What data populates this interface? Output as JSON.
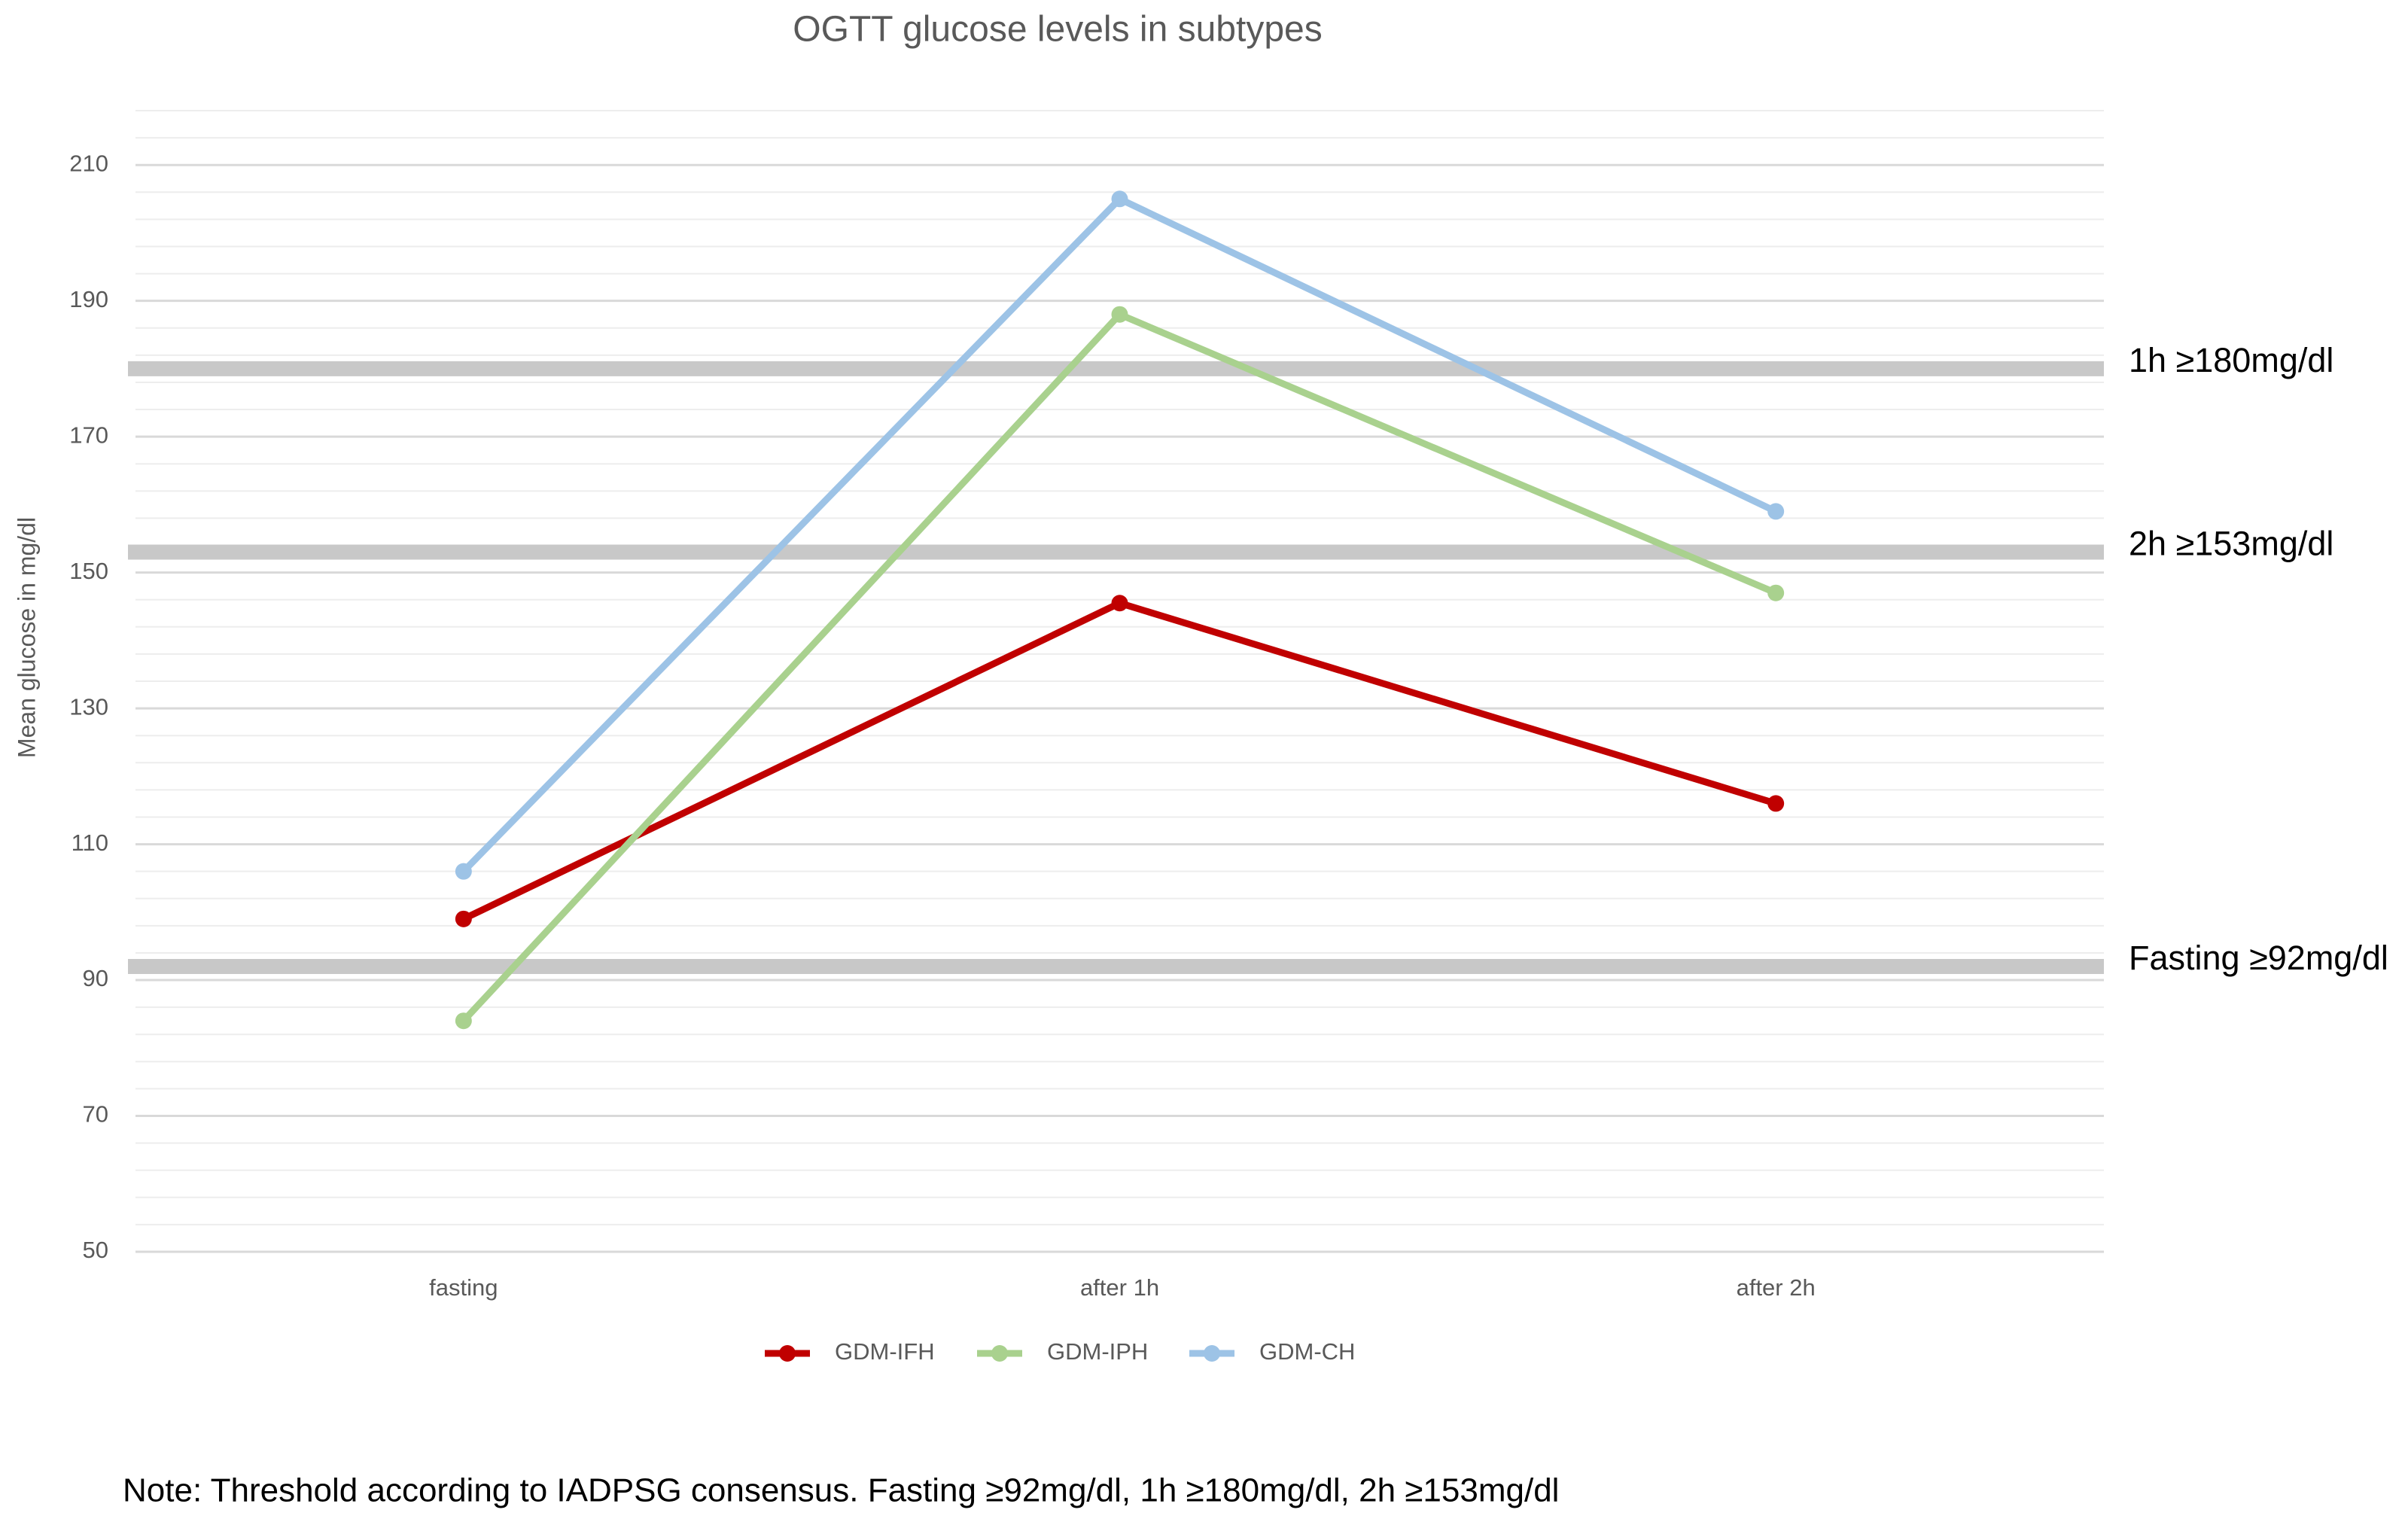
{
  "chart_data": {
    "type": "line",
    "title": "OGTT glucose levels in subtypes",
    "y_label": "Mean glucose in mg/dl",
    "categories": [
      "fasting",
      "after 1h",
      "after 2h"
    ],
    "series": [
      {
        "name": "GDM-IFH",
        "color": "#c00000",
        "values": [
          99,
          145.5,
          116
        ]
      },
      {
        "name": "GDM-IPH",
        "color": "#a9d18e",
        "values": [
          84,
          188,
          147
        ]
      },
      {
        "name": "GDM-CH",
        "color": "#9dc3e6",
        "values": [
          106,
          205,
          159
        ]
      }
    ],
    "ylim": [
      50,
      218
    ],
    "yticks": [
      50,
      70,
      90,
      110,
      130,
      150,
      170,
      190,
      210
    ],
    "grid": true,
    "minor_grid_step": 4,
    "legend": "bottom",
    "thresholds": [
      {
        "value": 180,
        "label": "1h ≥180mg/dl"
      },
      {
        "value": 153,
        "label": "2h ≥153mg/dl"
      },
      {
        "value": 92,
        "label": "Fasting ≥92mg/dl"
      }
    ],
    "note": "Note: Threshold according to IADPSG consensus. Fasting ≥92mg/dl, 1h ≥180mg/dl, 2h ≥153mg/dl"
  }
}
